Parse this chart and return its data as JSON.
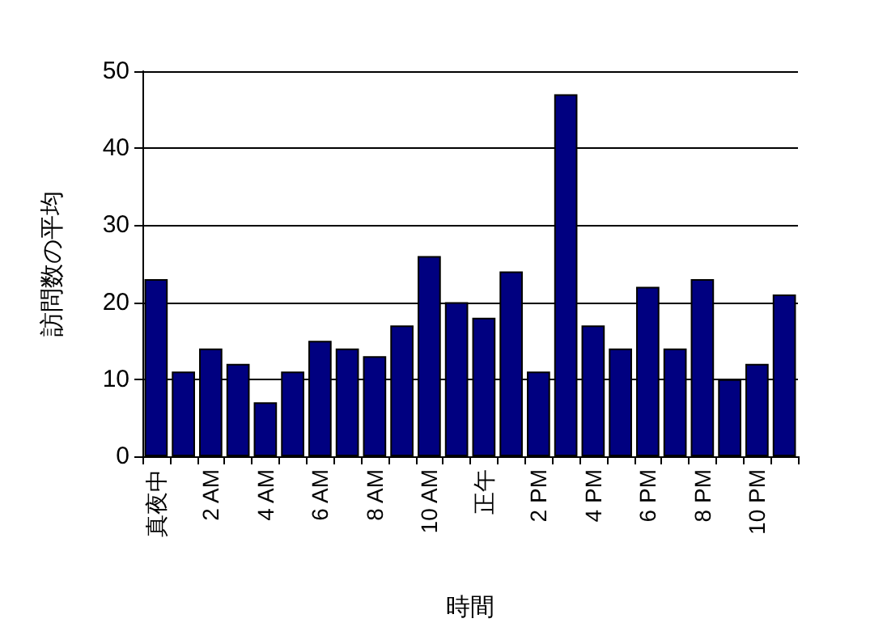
{
  "chart_data": {
    "type": "bar",
    "xlabel": "時間",
    "ylabel": "訪問数の平均",
    "categories": [
      "真夜中",
      null,
      "2 AM",
      null,
      "4 AM",
      null,
      "6 AM",
      null,
      "8 AM",
      null,
      "10 AM",
      null,
      "正午",
      null,
      "2 PM",
      null,
      "4 PM",
      null,
      "6 PM",
      null,
      "8 PM",
      null,
      "10 PM",
      null
    ],
    "values": [
      23,
      11,
      14,
      12,
      7,
      11,
      15,
      14,
      13,
      17,
      26,
      20,
      18,
      24,
      11,
      47,
      17,
      14,
      22,
      14,
      23,
      10,
      12,
      21
    ],
    "color": "#000080",
    "ylim": [
      0,
      50
    ],
    "yticks": [
      0,
      10,
      20,
      30,
      40,
      50
    ],
    "grid": "y"
  }
}
